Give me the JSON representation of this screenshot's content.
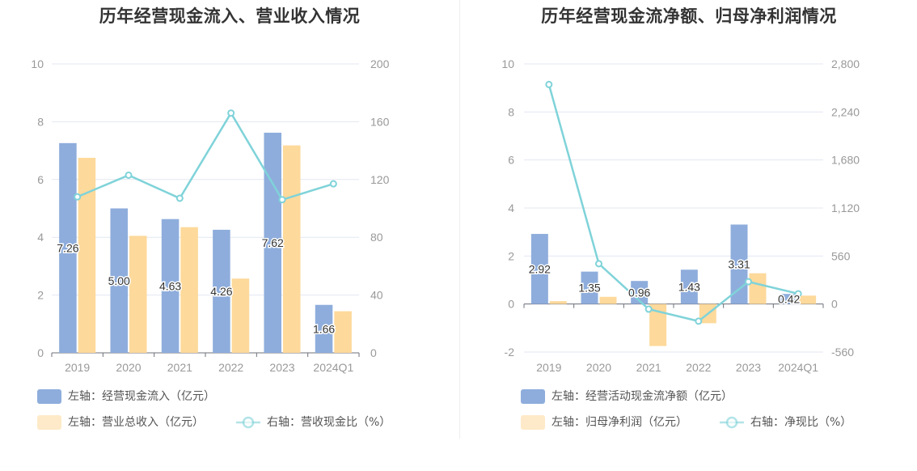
{
  "colors": {
    "bar_primary": "#8eaddc",
    "bar_secondary": "#fdd99b",
    "line": "#7fd3d9",
    "axis_text": "#999999",
    "grid": "#e3e7f2"
  },
  "chart_data": [
    {
      "type": "bar",
      "title": "历年经营现金流入、营业收入情况",
      "categories": [
        "2019",
        "2020",
        "2021",
        "2022",
        "2023",
        "2024Q1"
      ],
      "left_axis": {
        "ylim": [
          0,
          10
        ],
        "ticks": [
          "0",
          "2",
          "4",
          "6",
          "8",
          "10"
        ]
      },
      "right_axis": {
        "ylim": [
          0,
          200
        ],
        "ticks": [
          "0",
          "40",
          "80",
          "120",
          "160",
          "200"
        ]
      },
      "grid": true,
      "legend_position": "bottom-left",
      "series": [
        {
          "name": "左轴：经营现金流入（亿元）",
          "type": "bar",
          "axis": "left",
          "values": [
            7.26,
            5.0,
            4.63,
            4.26,
            7.62,
            1.66
          ],
          "labels": [
            "7.26",
            "5.00",
            "4.63",
            "4.26",
            "7.62",
            "1.66"
          ]
        },
        {
          "name": "左轴：营业总收入（亿元）",
          "type": "bar",
          "axis": "left",
          "values": [
            6.75,
            4.05,
            4.35,
            2.57,
            7.18,
            1.44
          ]
        },
        {
          "name": "右轴：营收现金比（%）",
          "type": "line",
          "axis": "right",
          "values": [
            108,
            123,
            107,
            166,
            106,
            117
          ]
        }
      ]
    },
    {
      "type": "bar",
      "title": "历年经营现金流净额、归母净利润情况",
      "categories": [
        "2019",
        "2020",
        "2021",
        "2022",
        "2023",
        "2024Q1"
      ],
      "left_axis": {
        "ylim": [
          -2,
          10
        ],
        "ticks": [
          "-2",
          "0",
          "2",
          "4",
          "6",
          "8",
          "10"
        ]
      },
      "right_axis": {
        "ylim": [
          -560,
          2800
        ],
        "ticks": [
          "-560",
          "0",
          "560",
          "1,120",
          "1,680",
          "2,240",
          "2,800"
        ]
      },
      "grid": true,
      "legend_position": "bottom-left",
      "series": [
        {
          "name": "左轴：经营活动现金流净额（亿元）",
          "type": "bar",
          "axis": "left",
          "values": [
            2.92,
            1.35,
            0.96,
            1.43,
            3.31,
            0.42
          ],
          "labels": [
            "2.92",
            "1.35",
            "0.96",
            "1.43",
            "3.31",
            "0.42"
          ]
        },
        {
          "name": "左轴：归母净利润（亿元）",
          "type": "bar",
          "axis": "left",
          "values": [
            0.12,
            0.3,
            -1.75,
            -0.8,
            1.28,
            0.35
          ]
        },
        {
          "name": "右轴：净现比（%）",
          "type": "line",
          "axis": "right",
          "values": [
            2560,
            470,
            -60,
            -200,
            260,
            120
          ]
        }
      ]
    }
  ]
}
